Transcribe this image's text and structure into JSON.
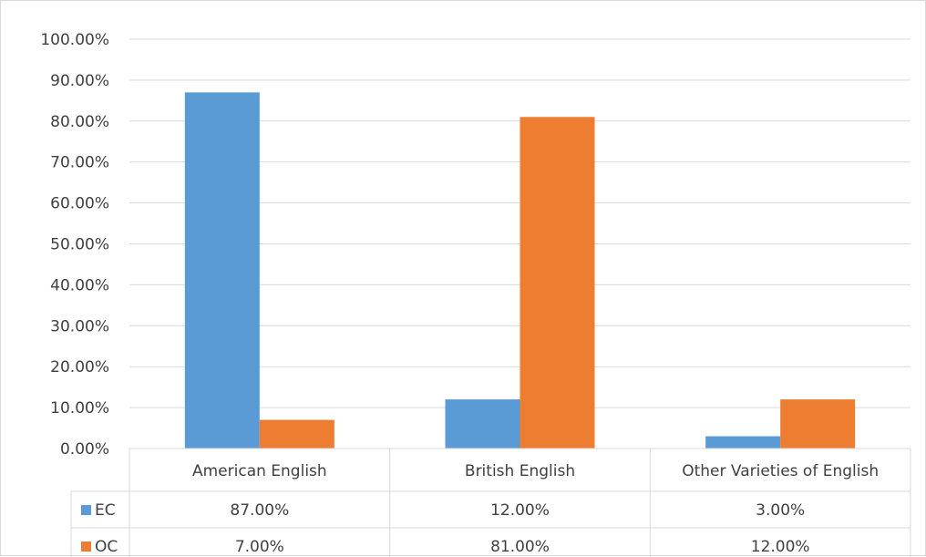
{
  "chart_data": {
    "type": "bar",
    "categories": [
      "American English",
      "British English",
      "Other Varieties of English"
    ],
    "series": [
      {
        "name": "EC",
        "values": [
          87.0,
          12.0,
          3.0
        ],
        "labels": [
          "87.00%",
          "12.00%",
          "3.00%"
        ],
        "color": "#5b9bd5"
      },
      {
        "name": "OC",
        "values": [
          7.0,
          81.0,
          12.0
        ],
        "labels": [
          "7.00%",
          "81.00%",
          "12.00%"
        ],
        "color": "#ed7d31"
      }
    ],
    "y_ticks": [
      "0.00%",
      "10.00%",
      "20.00%",
      "30.00%",
      "40.00%",
      "50.00%",
      "60.00%",
      "70.00%",
      "80.00%",
      "90.00%",
      "100.00%"
    ],
    "ylim": [
      0,
      100
    ],
    "grid": true,
    "legend": "data-table",
    "title": "",
    "xlabel": "",
    "ylabel": ""
  },
  "colors": {
    "grid": "#d9d9d9",
    "text": "#404040"
  }
}
